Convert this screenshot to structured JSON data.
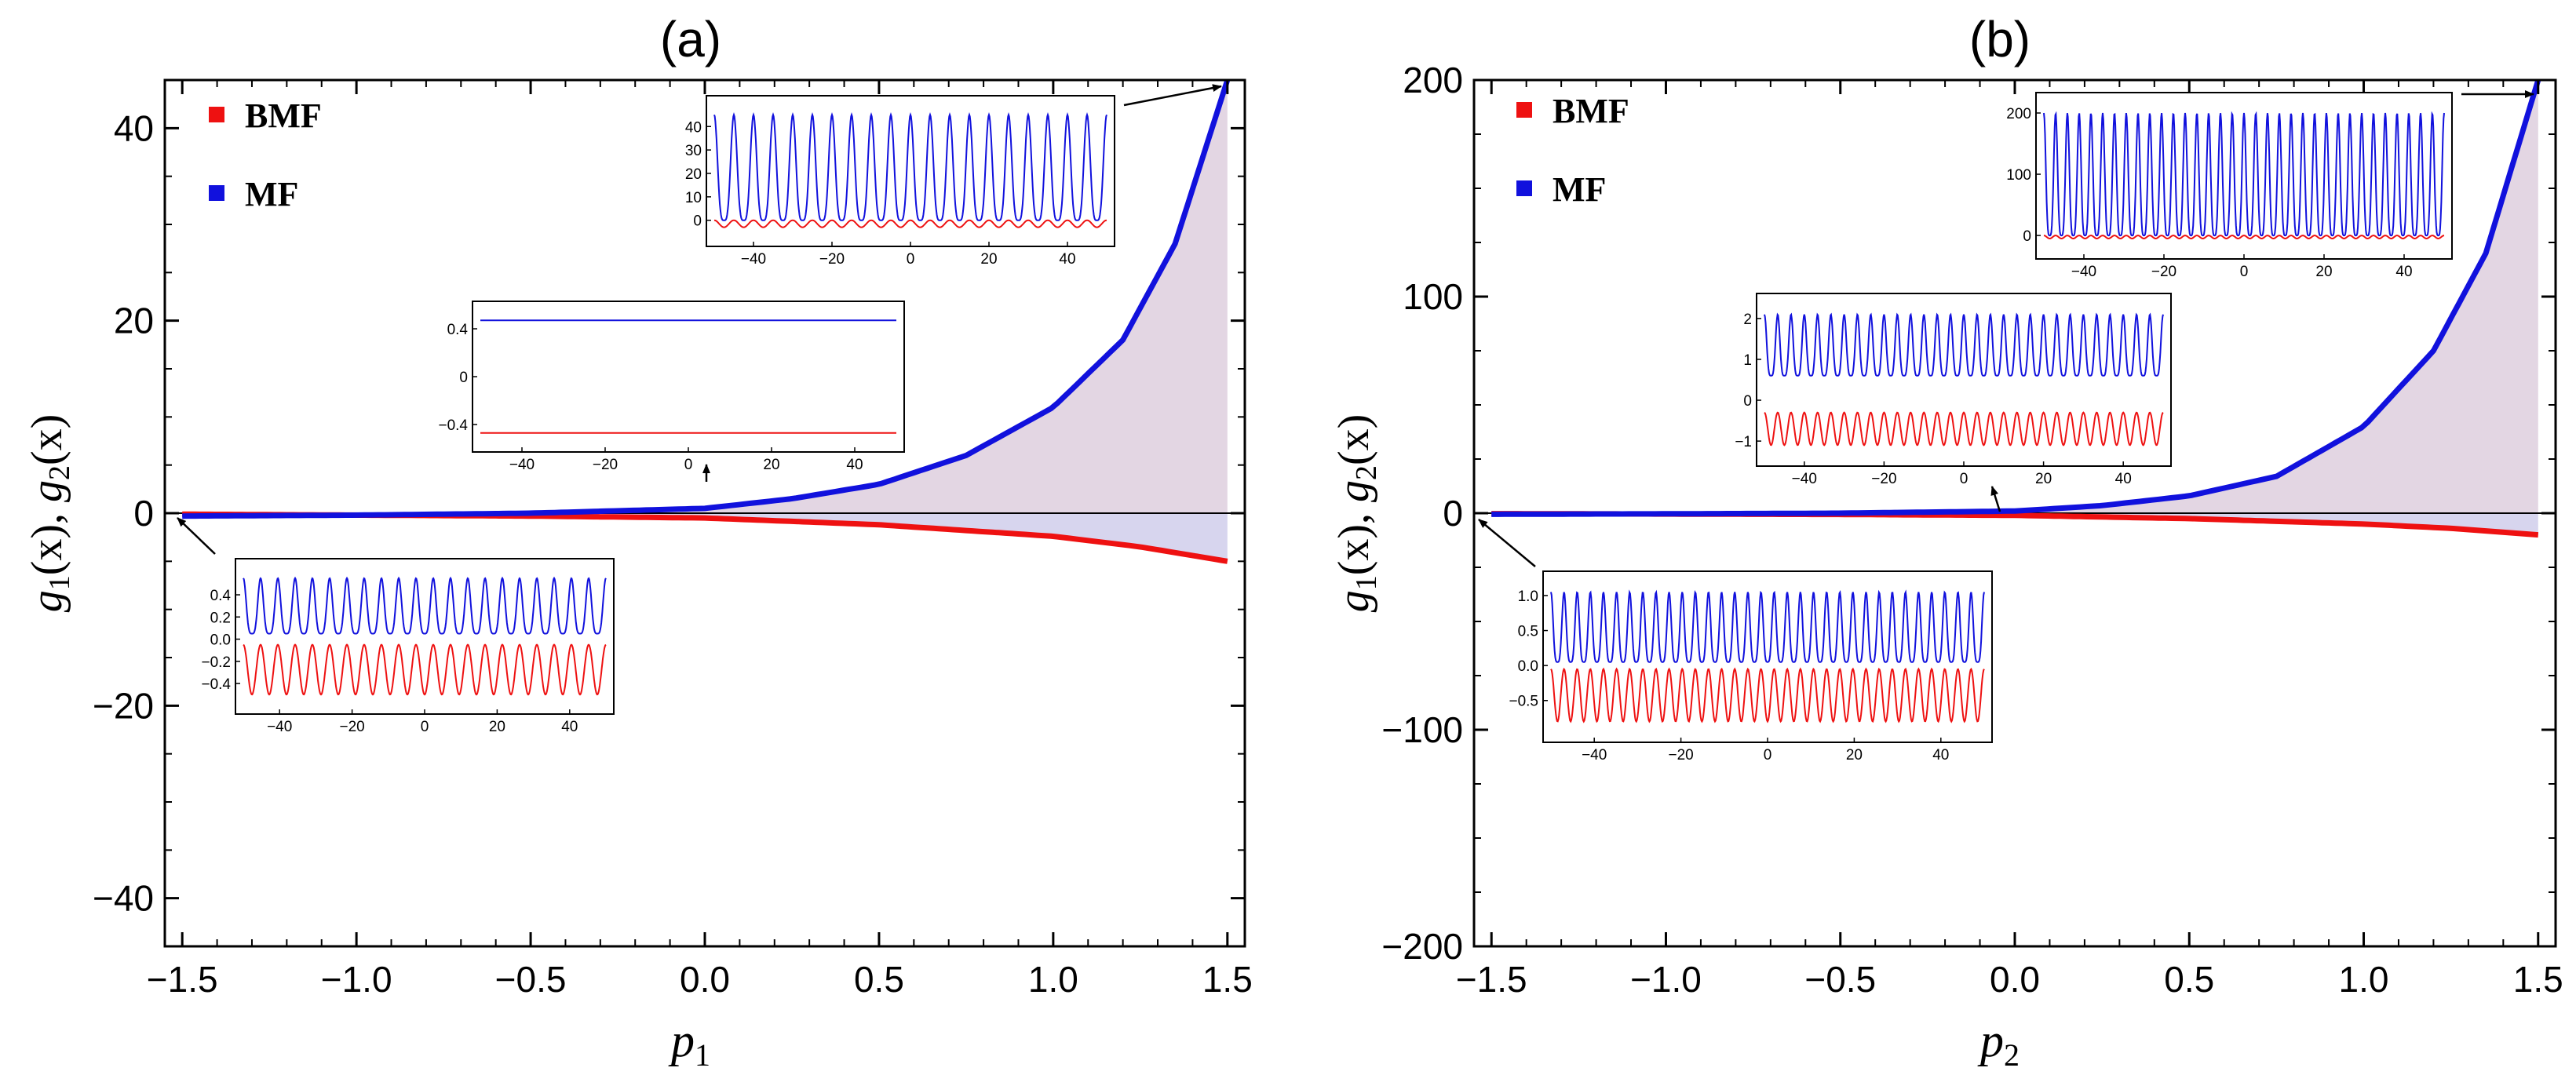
{
  "colors": {
    "bmf": "#ee1111",
    "mf": "#1111dd",
    "fill_upper": "#e3d6e3",
    "fill_lower": "#d7d5ee"
  },
  "chart_data": [
    {
      "type": "line",
      "panel_label": "(a)",
      "xlabel": "p",
      "xlabel_sub": "1",
      "ylabel_parts": [
        "g",
        "1",
        "(x),   ",
        "g",
        "2",
        "(x)"
      ],
      "xlim": [
        -1.55,
        1.55
      ],
      "ylim": [
        -45,
        45
      ],
      "xticks": [
        -1.5,
        -1.0,
        -0.5,
        0.0,
        0.5,
        1.0,
        1.5
      ],
      "xtick_labels": [
        "−1.5",
        "−1.0",
        "−0.5",
        "0.0",
        "0.5",
        "1.0",
        "1.5"
      ],
      "yticks": [
        -40,
        -20,
        0,
        20,
        40
      ],
      "ytick_labels": [
        "−40",
        "−20",
        "0",
        "20",
        "40"
      ],
      "legend": [
        "BMF",
        "MF"
      ],
      "legend_position": "top-left",
      "series": [
        {
          "name": "MF",
          "x": [
            -1.5,
            -1.0,
            -0.5,
            0.0,
            0.25,
            0.5,
            0.75,
            1.0,
            1.2,
            1.35,
            1.5
          ],
          "y": [
            -0.3,
            -0.2,
            0.0,
            0.5,
            1.5,
            3.0,
            6.0,
            11.0,
            18.0,
            28.0,
            45.0
          ]
        },
        {
          "name": "BMF",
          "x": [
            -1.5,
            -1.0,
            -0.5,
            0.0,
            0.5,
            1.0,
            1.25,
            1.5
          ],
          "y": [
            -0.1,
            -0.2,
            -0.3,
            -0.5,
            -1.2,
            -2.4,
            -3.5,
            -5.0
          ]
        }
      ],
      "insets": [
        {
          "position": "top",
          "x_ticks": [
            "−40",
            "−20",
            "0",
            "20",
            "40"
          ],
          "y_ticks": [
            "40",
            "30",
            "20",
            "10",
            "0"
          ],
          "mf_range": [
            0,
            45
          ],
          "bmf_range": [
            -3,
            0
          ],
          "periods": 20
        },
        {
          "position": "middle",
          "x_ticks": [
            "−40",
            "−20",
            "0",
            "20",
            "40"
          ],
          "y_ticks": [
            "0.4",
            "0",
            "−0.4"
          ],
          "mf_value": 0.47,
          "bmf_value": -0.47
        },
        {
          "position": "bottom",
          "x_ticks": [
            "−40",
            "−20",
            "0",
            "20",
            "40"
          ],
          "y_ticks": [
            "0.4",
            "0.2",
            "0.0",
            "−0.2",
            "−0.4"
          ],
          "mf_range": [
            0.05,
            0.55
          ],
          "bmf_range": [
            -0.5,
            -0.05
          ],
          "periods": 21
        }
      ]
    },
    {
      "type": "line",
      "panel_label": "(b)",
      "xlabel": "p",
      "xlabel_sub": "2",
      "ylabel_parts": [
        "g",
        "1",
        "(x),   ",
        "g",
        "2",
        "(x)"
      ],
      "xlim": [
        -1.55,
        1.55
      ],
      "ylim": [
        -200,
        200
      ],
      "xticks": [
        -1.5,
        -1.0,
        -0.5,
        0.0,
        0.5,
        1.0,
        1.5
      ],
      "xtick_labels": [
        "−1.5",
        "−1.0",
        "−0.5",
        "0.0",
        "0.5",
        "1.0",
        "1.5"
      ],
      "yticks": [
        -200,
        -100,
        0,
        100,
        200
      ],
      "ytick_labels": [
        "−200",
        "−100",
        "0",
        "100",
        "200"
      ],
      "legend": [
        "BMF",
        "MF"
      ],
      "legend_position": "top-left",
      "series": [
        {
          "name": "MF",
          "x": [
            -1.5,
            -1.0,
            -0.5,
            0.0,
            0.25,
            0.5,
            0.75,
            1.0,
            1.2,
            1.35,
            1.5
          ],
          "y": [
            -0.5,
            -0.3,
            0.0,
            1.0,
            3.5,
            8.0,
            17.0,
            40.0,
            75.0,
            120.0,
            200.0
          ]
        },
        {
          "name": "BMF",
          "x": [
            -1.5,
            -1.0,
            -0.5,
            0.0,
            0.5,
            1.0,
            1.25,
            1.5
          ],
          "y": [
            -0.2,
            -0.4,
            -0.6,
            -1.0,
            -2.5,
            -5.0,
            -7.0,
            -10.0
          ]
        }
      ],
      "insets": [
        {
          "position": "top",
          "x_ticks": [
            "−40",
            "−20",
            "0",
            "20",
            "40"
          ],
          "y_ticks": [
            "200",
            "100",
            "0"
          ],
          "mf_range": [
            0,
            200
          ],
          "bmf_range": [
            -5,
            0
          ],
          "periods": 34
        },
        {
          "position": "middle",
          "x_ticks": [
            "−40",
            "−20",
            "0",
            "20",
            "40"
          ],
          "y_ticks": [
            "2",
            "1",
            "0",
            "−1"
          ],
          "mf_range": [
            0.6,
            2.1
          ],
          "bmf_range": [
            -1.1,
            -0.3
          ],
          "periods": 30
        },
        {
          "position": "bottom",
          "x_ticks": [
            "−40",
            "−20",
            "0",
            "20",
            "40"
          ],
          "y_ticks": [
            "1.0",
            "0.5",
            "0.0",
            "−0.5"
          ],
          "mf_range": [
            0.05,
            1.05
          ],
          "bmf_range": [
            -0.8,
            -0.05
          ],
          "periods": 33
        }
      ]
    }
  ]
}
